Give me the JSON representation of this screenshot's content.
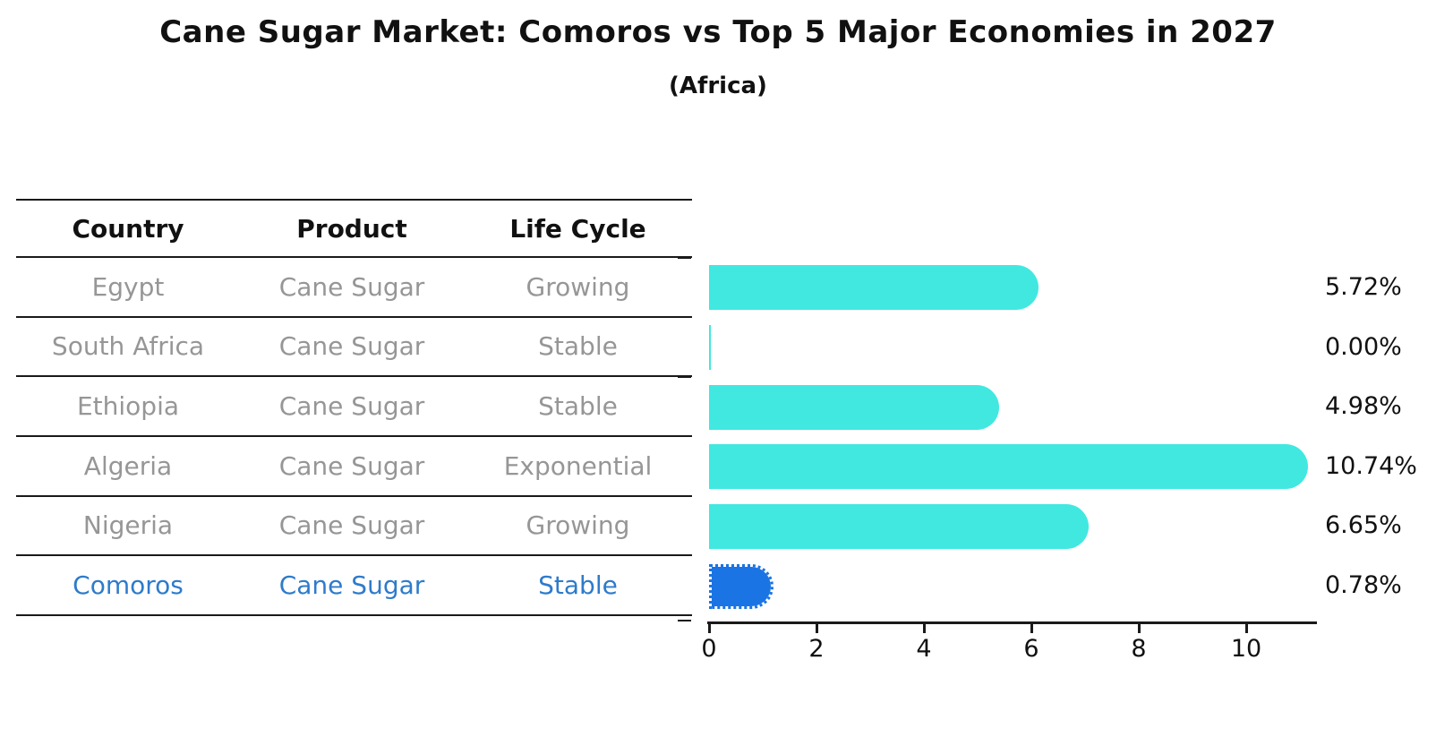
{
  "title": "Cane Sugar Market: Comoros vs Top 5 Major Economies in 2027",
  "subtitle": "(Africa)",
  "table": {
    "headers": {
      "country": "Country",
      "product": "Product",
      "life_cycle": "Life Cycle"
    },
    "rows": [
      {
        "country": "Egypt",
        "product": "Cane Sugar",
        "life_cycle": "Growing"
      },
      {
        "country": "South Africa",
        "product": "Cane Sugar",
        "life_cycle": "Stable"
      },
      {
        "country": "Ethiopia",
        "product": "Cane Sugar",
        "life_cycle": "Stable"
      },
      {
        "country": "Algeria",
        "product": "Cane Sugar",
        "life_cycle": "Exponential"
      },
      {
        "country": "Nigeria",
        "product": "Cane Sugar",
        "life_cycle": "Growing"
      },
      {
        "country": "Comoros",
        "product": "Cane Sugar",
        "life_cycle": "Stable"
      }
    ],
    "highlight_row": "Comoros"
  },
  "chart_data": {
    "type": "bar",
    "orientation": "horizontal",
    "title": "Cane Sugar Market: Comoros vs Top 5 Major Economies in 2027",
    "subtitle": "(Africa)",
    "categories": [
      "Egypt",
      "South Africa",
      "Ethiopia",
      "Algeria",
      "Nigeria",
      "Comoros"
    ],
    "values": [
      5.72,
      0.0,
      4.98,
      10.74,
      6.65,
      0.78
    ],
    "value_labels": [
      "5.72%",
      "0.00%",
      "4.98%",
      "10.74%",
      "6.65%",
      "0.78%"
    ],
    "x_ticks": [
      "0",
      "2",
      "4",
      "6",
      "8",
      "10"
    ],
    "xlim": [
      0,
      11.3
    ],
    "grid": false,
    "legend": false,
    "highlight_index": 5
  },
  "colors": {
    "bar": "#40E8E0",
    "highlight_bar": "#1B74E4",
    "highlight_text": "#2E7BCB",
    "body_text": "#969696",
    "header_text": "#111111",
    "axis": "#1a1a1a"
  }
}
